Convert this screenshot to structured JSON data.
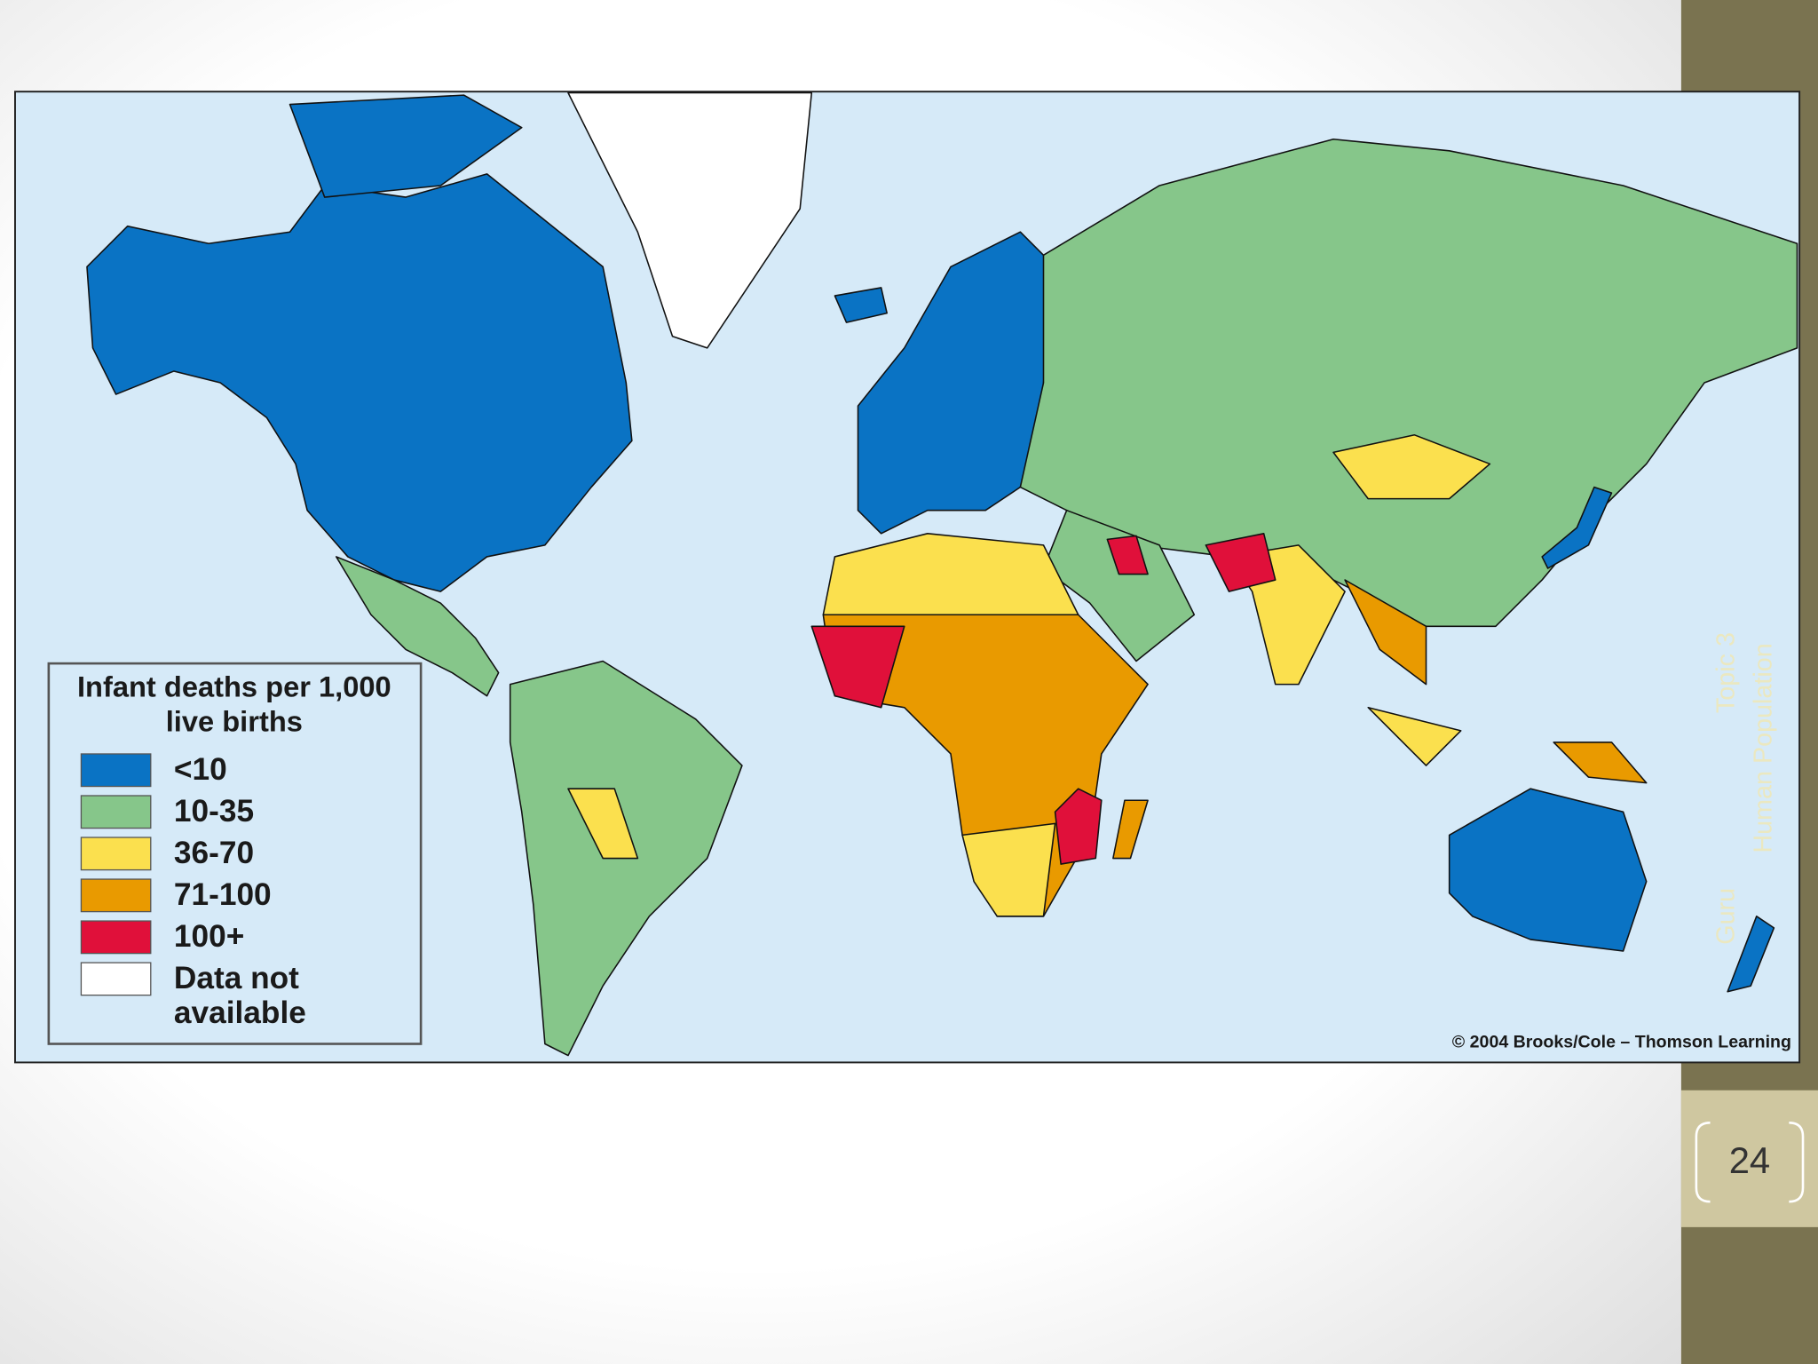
{
  "legend": {
    "title": [
      "Infant deaths per 1,000",
      "live births"
    ],
    "items": [
      {
        "label": [
          "<10"
        ],
        "color": "#0a73c4"
      },
      {
        "label": [
          "10-35"
        ],
        "color": "#86c68a"
      },
      {
        "label": [
          "36-70"
        ],
        "color": "#fbe04e"
      },
      {
        "label": [
          "71-100"
        ],
        "color": "#e99a00"
      },
      {
        "label": [
          "100+"
        ],
        "color": "#e0103a"
      },
      {
        "label": [
          "Data not",
          "available"
        ],
        "color": "#ffffff"
      }
    ]
  },
  "credit": "© 2004 Brooks/Cole – Thomson Learning",
  "sidebar": {
    "lines": [
      "Guru",
      "Topic 3",
      "Human Population"
    ]
  },
  "page_number": "24"
}
